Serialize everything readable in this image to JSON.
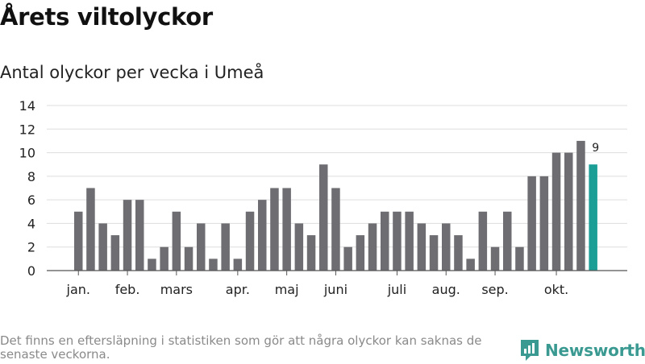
{
  "title": "Årets viltolyckor",
  "subtitle": "Antal olyckor per vecka i Umeå",
  "footnote": "Det finns en eftersläpning i statistiken som gör att några olyckor kan saknas de senaste veckorna.",
  "brand": {
    "name": "Newsworthy",
    "icon": "newsworthy-logo-icon",
    "color": "#3a9a92"
  },
  "colors": {
    "bar": "#6e6d72",
    "highlight": "#1a9e96",
    "grid": "#dddddd",
    "axis": "#555555"
  },
  "chart_data": {
    "type": "bar",
    "title": "Antal olyckor per vecka i Umeå",
    "xlabel": "",
    "ylabel": "",
    "ylim": [
      0,
      14
    ],
    "yticks": [
      0,
      2,
      4,
      6,
      8,
      10,
      12,
      14
    ],
    "grid": true,
    "values": [
      5,
      7,
      4,
      3,
      6,
      6,
      1,
      2,
      5,
      2,
      4,
      1,
      4,
      1,
      5,
      6,
      7,
      7,
      4,
      3,
      9,
      7,
      2,
      3,
      4,
      5,
      5,
      5,
      4,
      3,
      4,
      3,
      1,
      5,
      2,
      5,
      2,
      8,
      8,
      10,
      10,
      11,
      9
    ],
    "highlight_index": 42,
    "highlight_label": "9",
    "month_labels": [
      {
        "label": "jan.",
        "week": 1
      },
      {
        "label": "feb.",
        "week": 5
      },
      {
        "label": "mars",
        "week": 9
      },
      {
        "label": "apr.",
        "week": 14
      },
      {
        "label": "maj",
        "week": 18
      },
      {
        "label": "juni",
        "week": 22
      },
      {
        "label": "juli",
        "week": 27
      },
      {
        "label": "aug.",
        "week": 31
      },
      {
        "label": "sep.",
        "week": 35
      },
      {
        "label": "okt.",
        "week": 40
      }
    ]
  }
}
